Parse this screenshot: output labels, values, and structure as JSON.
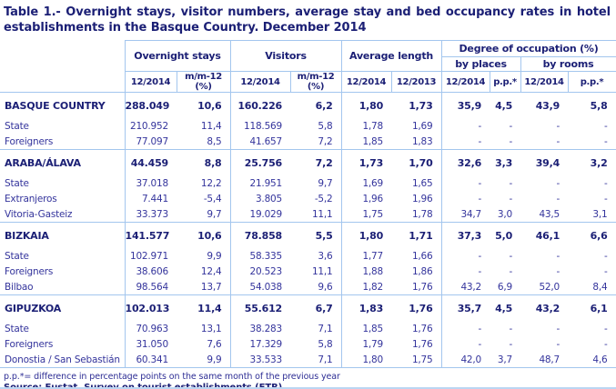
{
  "title": "Table 1.- Overnight stays, visitor numbers, average stay and bed occupancy rates in hotel establishments in the Basque Country. December 2014",
  "colors": {
    "text_navy": "#1b1f75",
    "data_text": "#34349c",
    "border_blue": "#a3c6ee"
  },
  "table": {
    "groups": [
      {
        "label": "Overnight stays"
      },
      {
        "label": "Visitors"
      },
      {
        "label": "Average length"
      },
      {
        "label": "Degree of occupation (%)",
        "subgroups": [
          {
            "label": "by places"
          },
          {
            "label": "by rooms"
          }
        ]
      }
    ],
    "columns": [
      "12/2014",
      "m/m-12\n(%)",
      "12/2014",
      "m/m-12\n(%)",
      "12/2014",
      "12/2013",
      "12/2014",
      "p.p.*",
      "12/2014",
      "p.p.*"
    ],
    "sections": [
      {
        "header_row": {
          "label": "BASQUE COUNTRY",
          "values": [
            "288.049",
            "10,6",
            "160.226",
            "6,2",
            "1,80",
            "1,73",
            "35,9",
            "4,5",
            "43,9",
            "5,8"
          ]
        },
        "rows": [
          {
            "label": "State",
            "values": [
              "210.952",
              "11,4",
              "118.569",
              "5,8",
              "1,78",
              "1,69",
              "-",
              "-",
              "-",
              "-"
            ]
          },
          {
            "label": "Foreigners",
            "values": [
              "77.097",
              "8,5",
              "41.657",
              "7,2",
              "1,85",
              "1,83",
              "-",
              "-",
              "-",
              "-"
            ]
          }
        ]
      },
      {
        "header_row": {
          "label": "ARABA/ÁLAVA",
          "values": [
            "44.459",
            "8,8",
            "25.756",
            "7,2",
            "1,73",
            "1,70",
            "32,6",
            "3,3",
            "39,4",
            "3,2"
          ]
        },
        "rows": [
          {
            "label": "State",
            "values": [
              "37.018",
              "12,2",
              "21.951",
              "9,7",
              "1,69",
              "1,65",
              "-",
              "-",
              "-",
              "-"
            ]
          },
          {
            "label": "Extranjeros",
            "values": [
              "7.441",
              "-5,4",
              "3.805",
              "-5,2",
              "1,96",
              "1,96",
              "-",
              "-",
              "-",
              "-"
            ]
          },
          {
            "label": "Vitoria-Gasteiz",
            "values": [
              "33.373",
              "9,7",
              "19.029",
              "11,1",
              "1,75",
              "1,78",
              "34,7",
              "3,0",
              "43,5",
              "3,1"
            ]
          }
        ]
      },
      {
        "header_row": {
          "label": "BIZKAIA",
          "values": [
            "141.577",
            "10,6",
            "78.858",
            "5,5",
            "1,80",
            "1,71",
            "37,3",
            "5,0",
            "46,1",
            "6,6"
          ]
        },
        "rows": [
          {
            "label": "State",
            "values": [
              "102.971",
              "9,9",
              "58.335",
              "3,6",
              "1,77",
              "1,66",
              "-",
              "-",
              "-",
              "-"
            ]
          },
          {
            "label": "Foreigners",
            "values": [
              "38.606",
              "12,4",
              "20.523",
              "11,1",
              "1,88",
              "1,86",
              "-",
              "-",
              "-",
              "-"
            ]
          },
          {
            "label": "Bilbao",
            "values": [
              "98.564",
              "13,7",
              "54.038",
              "9,6",
              "1,82",
              "1,76",
              "43,2",
              "6,9",
              "52,0",
              "8,4"
            ]
          }
        ]
      },
      {
        "header_row": {
          "label": "GIPUZKOA",
          "values": [
            "102.013",
            "11,4",
            "55.612",
            "6,7",
            "1,83",
            "1,76",
            "35,7",
            "4,5",
            "43,2",
            "6,1"
          ]
        },
        "rows": [
          {
            "label": "State",
            "values": [
              "70.963",
              "13,1",
              "38.283",
              "7,1",
              "1,85",
              "1,76",
              "-",
              "-",
              "-",
              "-"
            ]
          },
          {
            "label": "Foreigners",
            "values": [
              "31.050",
              "7,6",
              "17.329",
              "5,8",
              "1,79",
              "1,76",
              "-",
              "-",
              "-",
              "-"
            ]
          },
          {
            "label": "Donostia / San Sebastián",
            "values": [
              "60.341",
              "9,9",
              "33.533",
              "7,1",
              "1,80",
              "1,75",
              "42,0",
              "3,7",
              "48,7",
              "4,6"
            ]
          }
        ]
      }
    ]
  },
  "footnote": "p.p.*= difference in percentage points on the same month of the previous year",
  "source": "Source: Eustat. Survey on tourist establishments (ETR)"
}
